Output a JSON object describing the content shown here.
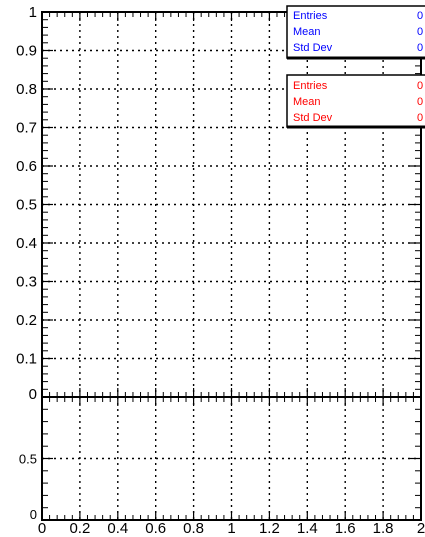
{
  "chart_data": [
    {
      "type": "histogram",
      "panel": "upper",
      "title": "",
      "xlabel": "",
      "ylabel": "",
      "xlim": [
        0,
        2
      ],
      "ylim": [
        0,
        1
      ],
      "grid": true,
      "x_ticks": [
        "0",
        "0.2",
        "0.4",
        "0.6",
        "0.8",
        "1",
        "1.2",
        "1.4",
        "1.6",
        "1.8",
        "2"
      ],
      "y_ticks": [
        "0",
        "0.1",
        "0.2",
        "0.3",
        "0.4",
        "0.5",
        "0.6",
        "0.7",
        "0.8",
        "0.9",
        "1"
      ],
      "series": [
        {
          "color": "#0000ff",
          "values": []
        },
        {
          "color": "#ff0000",
          "values": []
        }
      ],
      "stats_boxes": [
        {
          "color": "#0000ff",
          "rows": [
            {
              "label": "Entries",
              "value": "0"
            },
            {
              "label": "Mean",
              "value": "0"
            },
            {
              "label": "Std Dev",
              "value": "0"
            }
          ]
        },
        {
          "color": "#ff0000",
          "rows": [
            {
              "label": "Entries",
              "value": "0"
            },
            {
              "label": "Mean",
              "value": "0"
            },
            {
              "label": "Std Dev",
              "value": "0"
            }
          ]
        }
      ]
    },
    {
      "type": "histogram",
      "panel": "lower",
      "title": "",
      "xlabel": "",
      "ylabel": "",
      "xlim": [
        0,
        2
      ],
      "ylim": [
        0,
        1
      ],
      "grid": true,
      "y_ticks": [
        "0",
        "0.5"
      ],
      "series": []
    }
  ]
}
